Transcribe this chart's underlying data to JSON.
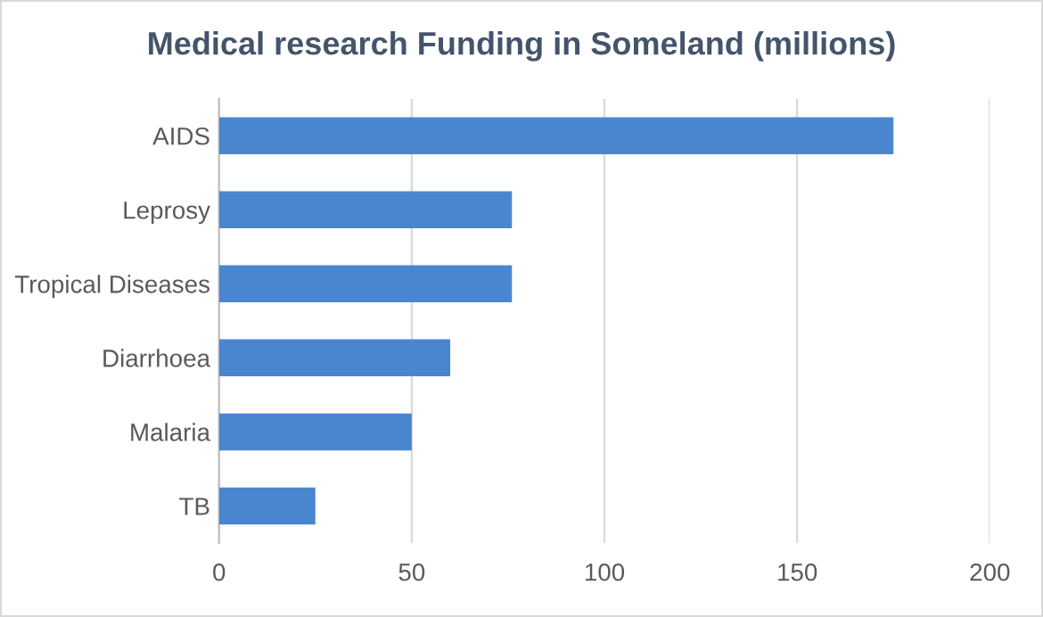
{
  "chart_data": {
    "type": "bar",
    "orientation": "horizontal",
    "title": "Medical research Funding in Someland (millions)",
    "categories": [
      "AIDS",
      "Leprosy",
      "Tropical Diseases",
      "Diarrhoea",
      "Malaria",
      "TB"
    ],
    "values": [
      175,
      76,
      76,
      60,
      50,
      25
    ],
    "color": "#4a86d0",
    "xlim": [
      0,
      200
    ],
    "xticks": [
      0,
      50,
      100,
      150,
      200
    ],
    "grid": "x"
  }
}
